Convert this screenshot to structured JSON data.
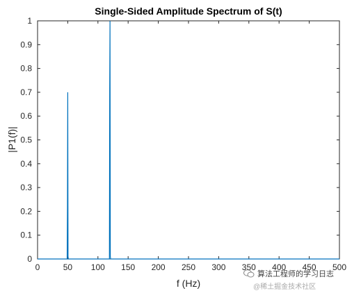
{
  "chart_data": {
    "type": "line",
    "title": "Single-Sided Amplitude Spectrum of S(t)",
    "xlabel": "f (Hz)",
    "ylabel": "|P1(f)|",
    "xlim": [
      0,
      500
    ],
    "ylim": [
      0,
      1
    ],
    "xticks": [
      "0",
      "50",
      "100",
      "150",
      "200",
      "250",
      "300",
      "350",
      "400",
      "450",
      "500"
    ],
    "yticks": [
      "0",
      "0.1",
      "0.2",
      "0.3",
      "0.4",
      "0.5",
      "0.6",
      "0.7",
      "0.8",
      "0.9",
      "1"
    ],
    "grid": false,
    "series": [
      {
        "color": "#0072BD",
        "x": [
          0,
          49,
          49.5,
          50,
          50.5,
          51,
          119,
          119.5,
          120,
          120.5,
          121,
          500
        ],
        "y": [
          0,
          0,
          0.215,
          0.7,
          0.01,
          0,
          0,
          0.72,
          1.0,
          0.01,
          0,
          0
        ]
      }
    ]
  },
  "watermark": {
    "line1": "算法工程师的学习日志",
    "line2": "@稀土掘金技术社区",
    "icon": "wechat-icon"
  }
}
